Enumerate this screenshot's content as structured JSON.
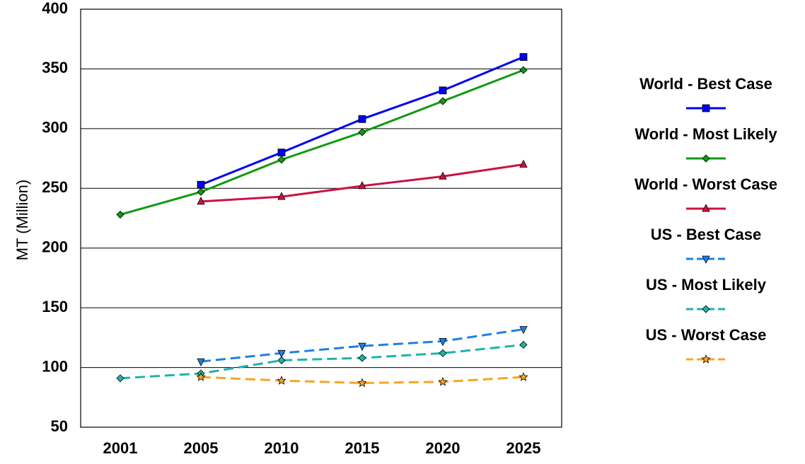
{
  "chart_data": {
    "type": "line",
    "title": "",
    "xlabel": "",
    "ylabel": "MT (Million)",
    "categories": [
      "2001",
      "2005",
      "2010",
      "2015",
      "2020",
      "2025"
    ],
    "ylim": [
      50,
      400
    ],
    "yticks": [
      50,
      100,
      150,
      200,
      250,
      300,
      350,
      400
    ],
    "grid": true,
    "legend_position": "right",
    "series": [
      {
        "name": "World - Best Case",
        "color": "#0000ee",
        "marker": "square",
        "dash": "solid",
        "values": [
          null,
          253,
          280,
          308,
          332,
          360
        ]
      },
      {
        "name": "World - Most Likely",
        "color": "#119911",
        "marker": "diamond",
        "dash": "solid",
        "values": [
          228,
          247,
          274,
          297,
          323,
          349
        ]
      },
      {
        "name": "World - Worst Case",
        "color": "#cc1144",
        "marker": "triangle-up",
        "dash": "solid",
        "values": [
          null,
          239,
          243,
          252,
          260,
          270
        ]
      },
      {
        "name": "US - Best Case",
        "color": "#1e7fe6",
        "marker": "triangle-down",
        "dash": "dashed",
        "values": [
          null,
          105,
          112,
          118,
          122,
          132
        ]
      },
      {
        "name": "US - Most Likely",
        "color": "#20b2aa",
        "marker": "diamond",
        "dash": "dashed",
        "values": [
          91,
          95,
          106,
          108,
          112,
          119
        ]
      },
      {
        "name": "US - Worst Case",
        "color": "#f5a623",
        "marker": "star",
        "dash": "dashed",
        "values": [
          null,
          92,
          89,
          87,
          88,
          92
        ]
      }
    ]
  }
}
